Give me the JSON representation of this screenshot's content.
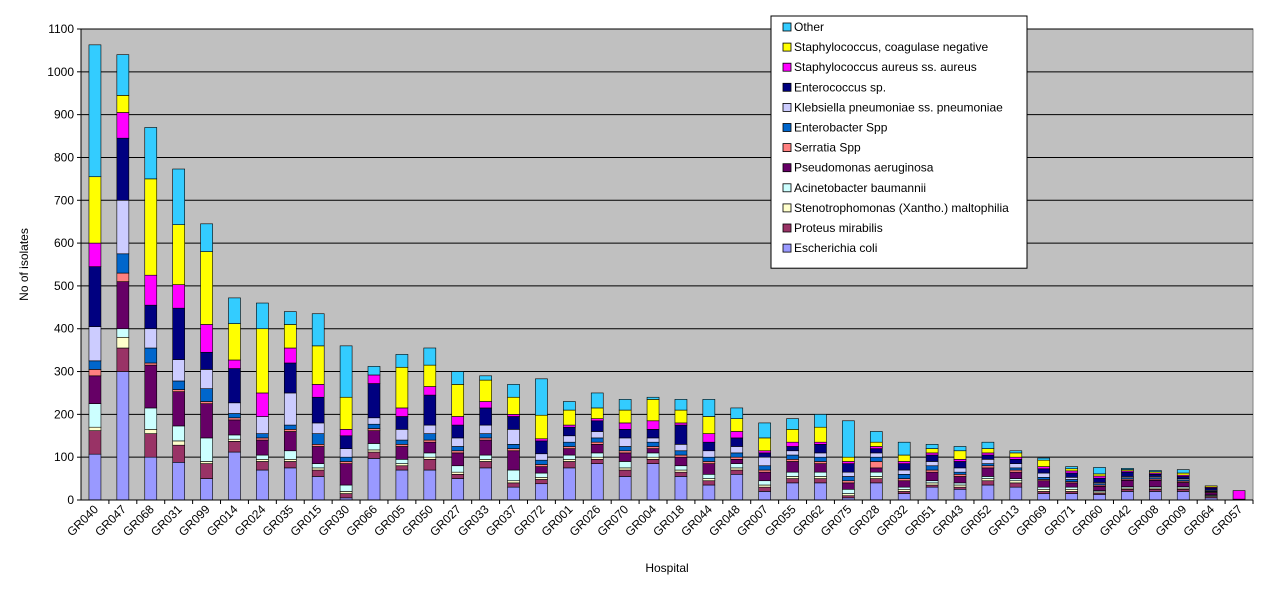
{
  "chart_data": {
    "type": "bar",
    "stacked": true,
    "xlabel": "Hospital",
    "ylabel": "No of isolates",
    "ylim": [
      0,
      1100
    ],
    "yticks": [
      0,
      100,
      200,
      300,
      400,
      500,
      600,
      700,
      800,
      900,
      1000,
      1100
    ],
    "grid": true,
    "legend_position": "top-right",
    "categories": [
      "GR040",
      "GR047",
      "GR068",
      "GR031",
      "GR099",
      "GR014",
      "GR024",
      "GR035",
      "GR015",
      "GR030",
      "GR066",
      "GR005",
      "GR050",
      "GR027",
      "GR033",
      "GR037",
      "GR072",
      "GR001",
      "GR026",
      "GR070",
      "GR004",
      "GR018",
      "GR044",
      "GR048",
      "GR007",
      "GR055",
      "GR062",
      "GR075",
      "GR028",
      "GR032",
      "GR051",
      "GR043",
      "GR052",
      "GR013",
      "GR069",
      "GR071",
      "GR060",
      "GR042",
      "GR008",
      "GR009",
      "GR064",
      "GR057"
    ],
    "series": [
      {
        "name": "Escherichia coli",
        "color": "#9999ff",
        "values": [
          107,
          300,
          100,
          88,
          50,
          112,
          70,
          75,
          55,
          5,
          97,
          70,
          70,
          50,
          75,
          30,
          38,
          75,
          85,
          55,
          85,
          55,
          35,
          60,
          20,
          40,
          40,
          5,
          40,
          15,
          30,
          25,
          35,
          30,
          15,
          15,
          13,
          20,
          20,
          20,
          5,
          2
        ]
      },
      {
        "name": "Proteus mirabilis",
        "color": "#993366",
        "values": [
          55,
          55,
          55,
          40,
          35,
          25,
          20,
          15,
          15,
          10,
          15,
          10,
          25,
          10,
          15,
          10,
          10,
          15,
          10,
          15,
          10,
          10,
          10,
          10,
          10,
          10,
          10,
          5,
          10,
          5,
          5,
          5,
          10,
          10,
          5,
          5,
          3,
          5,
          5,
          5,
          3,
          0
        ]
      },
      {
        "name": "Stenotrophomonas (Xantho.) maltophilia",
        "color": "#ffffcc",
        "values": [
          8,
          25,
          10,
          10,
          5,
          5,
          5,
          5,
          5,
          5,
          5,
          5,
          5,
          5,
          5,
          5,
          5,
          5,
          5,
          5,
          5,
          5,
          5,
          5,
          5,
          5,
          5,
          5,
          5,
          5,
          5,
          5,
          5,
          5,
          5,
          5,
          3,
          3,
          3,
          3,
          2,
          0
        ]
      },
      {
        "name": "Acinetobacter baumannii",
        "color": "#ccffff",
        "values": [
          55,
          20,
          50,
          35,
          55,
          10,
          10,
          20,
          10,
          15,
          15,
          10,
          10,
          15,
          10,
          25,
          10,
          10,
          10,
          15,
          10,
          10,
          10,
          10,
          10,
          10,
          10,
          10,
          10,
          5,
          5,
          5,
          5,
          5,
          5,
          5,
          3,
          3,
          3,
          3,
          2,
          0
        ]
      },
      {
        "name": "Pseudomonas aeruginosa",
        "color": "#660066",
        "values": [
          65,
          110,
          100,
          80,
          80,
          35,
          35,
          45,
          40,
          50,
          30,
          30,
          25,
          30,
          35,
          45,
          15,
          15,
          20,
          20,
          10,
          20,
          25,
          10,
          20,
          25,
          20,
          15,
          10,
          15,
          20,
          15,
          20,
          15,
          15,
          10,
          10,
          15,
          15,
          10,
          5,
          0
        ]
      },
      {
        "name": "Serratia Spp",
        "color": "#ff8080",
        "values": [
          15,
          20,
          5,
          5,
          5,
          5,
          5,
          5,
          5,
          5,
          5,
          5,
          5,
          5,
          5,
          5,
          5,
          5,
          5,
          5,
          5,
          5,
          5,
          5,
          5,
          5,
          5,
          5,
          15,
          5,
          5,
          5,
          5,
          5,
          3,
          3,
          3,
          3,
          3,
          3,
          2,
          0
        ]
      },
      {
        "name": "Enterobacter Spp",
        "color": "#0066cc",
        "values": [
          20,
          45,
          35,
          20,
          30,
          10,
          10,
          10,
          25,
          10,
          10,
          10,
          15,
          10,
          10,
          10,
          10,
          10,
          10,
          10,
          10,
          10,
          10,
          10,
          10,
          10,
          10,
          10,
          10,
          10,
          10,
          5,
          5,
          5,
          5,
          5,
          3,
          3,
          3,
          3,
          2,
          0
        ]
      },
      {
        "name": "Klebsiella pneumoniae ss. pneumoniae",
        "color": "#ccccff",
        "values": [
          80,
          125,
          45,
          50,
          45,
          25,
          40,
          75,
          25,
          20,
          15,
          25,
          20,
          20,
          20,
          35,
          15,
          15,
          15,
          20,
          10,
          15,
          15,
          15,
          20,
          10,
          10,
          10,
          10,
          10,
          10,
          10,
          10,
          10,
          10,
          5,
          3,
          3,
          3,
          3,
          2,
          0
        ]
      },
      {
        "name": "Enterococcus sp.",
        "color": "#000080",
        "values": [
          140,
          145,
          55,
          120,
          40,
          80,
          0,
          70,
          60,
          30,
          80,
          30,
          70,
          30,
          40,
          30,
          30,
          20,
          25,
          20,
          20,
          45,
          20,
          20,
          10,
          10,
          20,
          20,
          10,
          15,
          15,
          15,
          10,
          10,
          10,
          10,
          10,
          10,
          5,
          5,
          5,
          0
        ]
      },
      {
        "name": "Staphylococcus aureus ss. aureus",
        "color": "#ff00ff",
        "values": [
          55,
          60,
          70,
          55,
          65,
          20,
          55,
          35,
          30,
          15,
          20,
          20,
          20,
          20,
          15,
          5,
          5,
          5,
          5,
          15,
          20,
          5,
          20,
          15,
          5,
          10,
          5,
          5,
          5,
          5,
          5,
          5,
          5,
          5,
          5,
          5,
          5,
          3,
          3,
          3,
          2,
          20
        ]
      },
      {
        "name": "Staphylococcus, coagulase negative",
        "color": "#ffff00",
        "values": [
          155,
          40,
          225,
          140,
          170,
          85,
          150,
          55,
          90,
          75,
          0,
          95,
          50,
          75,
          50,
          40,
          55,
          35,
          25,
          30,
          50,
          30,
          40,
          30,
          30,
          30,
          35,
          10,
          10,
          15,
          10,
          20,
          10,
          10,
          15,
          5,
          5,
          3,
          3,
          5,
          3,
          0
        ]
      },
      {
        "name": "Other",
        "color": "#33ccff",
        "values": [
          308,
          95,
          120,
          130,
          65,
          60,
          60,
          30,
          75,
          120,
          20,
          30,
          40,
          30,
          10,
          30,
          85,
          20,
          35,
          25,
          5,
          25,
          40,
          25,
          35,
          25,
          30,
          85,
          25,
          30,
          10,
          10,
          15,
          5,
          5,
          5,
          15,
          3,
          3,
          8,
          0,
          0
        ]
      }
    ]
  }
}
